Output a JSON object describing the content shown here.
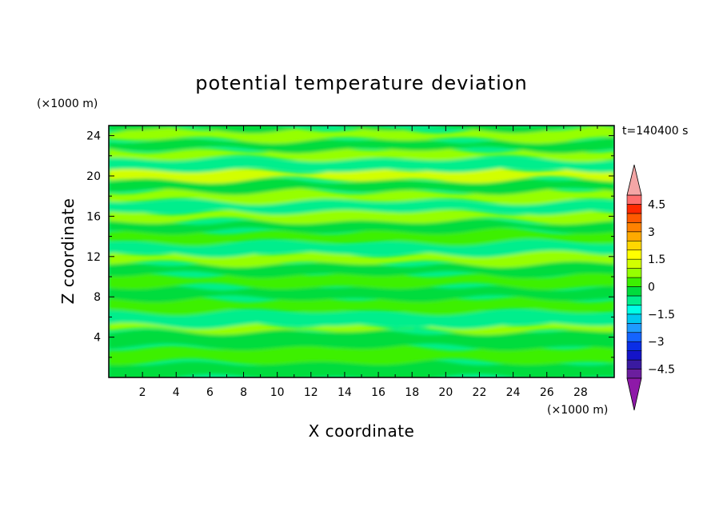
{
  "chart_data": {
    "type": "heatmap",
    "title": "potential temperature deviation",
    "xlabel": "X coordinate",
    "ylabel": "Z coordinate",
    "x_unit": "(×1000 m)",
    "y_unit": "(×1000 m)",
    "time_label": "t=140400 s",
    "xlim": [
      0,
      30
    ],
    "ylim": [
      0,
      25
    ],
    "x_ticks": [
      2,
      4,
      6,
      8,
      10,
      12,
      14,
      16,
      18,
      20,
      22,
      24,
      26,
      28
    ],
    "y_ticks": [
      4,
      8,
      12,
      16,
      20,
      24
    ],
    "colorbar": {
      "levels": [
        -5,
        -4.5,
        -4,
        -3.5,
        -3,
        -2.5,
        -2,
        -1.5,
        -1,
        -0.5,
        0,
        0.5,
        1,
        1.5,
        2,
        2.5,
        3,
        3.5,
        4,
        4.5,
        5
      ],
      "tick_labels": [
        "4.5",
        "3",
        "1.5",
        "0",
        "−1.5",
        "−3",
        "−4.5"
      ],
      "tick_values": [
        4.5,
        3,
        1.5,
        0,
        -1.5,
        -3,
        -4.5
      ],
      "colors": [
        "#6b1e9e",
        "#3a1aa0",
        "#1414c8",
        "#0a2ee6",
        "#1464ff",
        "#1e9bff",
        "#00c8f0",
        "#00ffe6",
        "#00ee8c",
        "#00dc3c",
        "#3cf000",
        "#96ff00",
        "#d2ff00",
        "#ffff00",
        "#ffd700",
        "#ffaa00",
        "#ff8200",
        "#ff5a00",
        "#ff2800",
        "#ff6e6e"
      ],
      "over_color": "#f4a6a6",
      "under_color": "#8e19a8"
    },
    "field_bands": [
      {
        "z": 0.0,
        "value": -0.3
      },
      {
        "z": 1.5,
        "value": 0.2
      },
      {
        "z": 3.0,
        "value": -0.2
      },
      {
        "z": 4.6,
        "value": 0.8
      },
      {
        "z": 5.2,
        "value": -0.6
      },
      {
        "z": 6.5,
        "value": 0.1
      },
      {
        "z": 7.8,
        "value": -0.3
      },
      {
        "z": 9.0,
        "value": 0.3
      },
      {
        "z": 10.2,
        "value": -0.5
      },
      {
        "z": 11.3,
        "value": 0.6
      },
      {
        "z": 12.3,
        "value": -0.7
      },
      {
        "z": 13.4,
        "value": 0.4
      },
      {
        "z": 14.5,
        "value": -0.4
      },
      {
        "z": 15.5,
        "value": 0.7
      },
      {
        "z": 16.5,
        "value": -0.6
      },
      {
        "z": 17.5,
        "value": 0.5
      },
      {
        "z": 18.5,
        "value": -0.4
      },
      {
        "z": 19.6,
        "value": 1.0
      },
      {
        "z": 20.6,
        "value": -0.8
      },
      {
        "z": 21.7,
        "value": 0.6
      },
      {
        "z": 22.6,
        "value": -0.5
      },
      {
        "z": 23.6,
        "value": 0.5
      },
      {
        "z": 24.6,
        "value": -0.3
      },
      {
        "z": 25.0,
        "value": 0.2
      }
    ]
  }
}
